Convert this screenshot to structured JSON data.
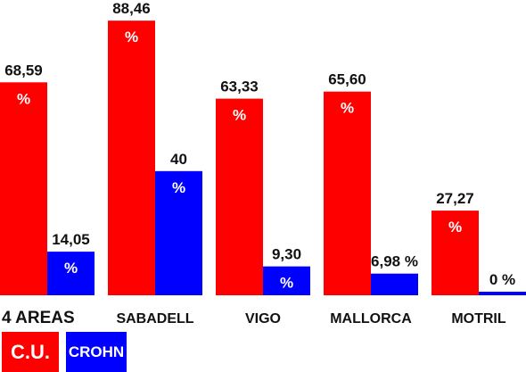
{
  "chart_data": {
    "type": "bar",
    "categories": [
      "4 AREAS",
      "SABADELL",
      "VIGO",
      "MALLORCA",
      "MOTRIL"
    ],
    "series": [
      {
        "name": "C.U.",
        "color": "#ff0000",
        "values": [
          68.59,
          88.46,
          63.33,
          65.6,
          27.27
        ],
        "labels": [
          "68,59",
          "88,46",
          "63,33",
          "65,60",
          "27,27"
        ]
      },
      {
        "name": "CROHN",
        "color": "#0000ff",
        "values": [
          14.05,
          40,
          9.3,
          6.98,
          0
        ],
        "labels": [
          "14,05",
          "40",
          "9,30",
          "6,98",
          "0"
        ]
      }
    ],
    "unit": "%",
    "ylim": [
      0,
      100
    ],
    "legend": "bottom-left",
    "grid": false
  }
}
